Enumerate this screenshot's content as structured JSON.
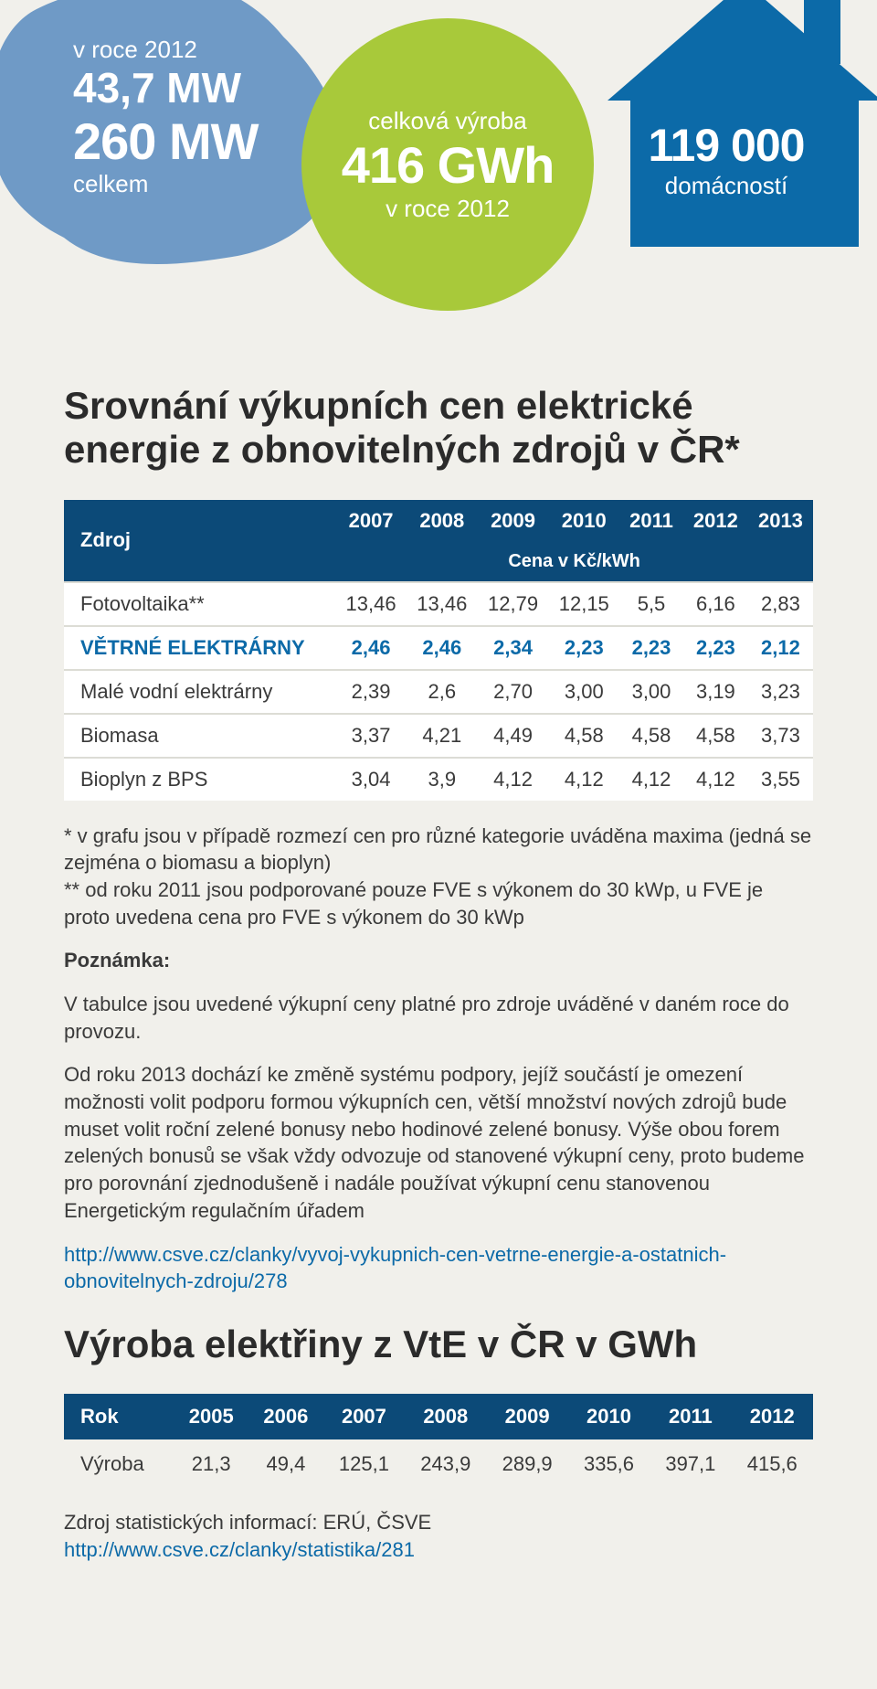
{
  "colors": {
    "page_bg": "#f1f0eb",
    "map_blue": "#6f9ac6",
    "circle_green": "#a8c93a",
    "house_blue": "#0c6aa8",
    "header_dark": "#0c4a78",
    "text": "#3a3a3a",
    "link": "#0c6aa8",
    "row_divider": "#dcdcd5"
  },
  "hero": {
    "map": {
      "line1": "v roce 2012",
      "line2": "43,7 MW",
      "line3": "260 MW",
      "line4": "celkem"
    },
    "circle": {
      "line1": "celková výroba",
      "line2": "416 GWh",
      "line3": "v roce 2012"
    },
    "house": {
      "line1": "119 000",
      "line2": "domácností"
    }
  },
  "title1": "Srovnání výkupních cen elektrické energie z obnovitelných zdrojů v ČR*",
  "table1": {
    "col0_header": "Zdroj",
    "year_headers": [
      "2007",
      "2008",
      "2009",
      "2010",
      "2011",
      "2012",
      "2013"
    ],
    "subheader": "Cena v Kč/kWh",
    "rows": [
      {
        "label": "Fotovoltaika**",
        "vals": [
          "13,46",
          "13,46",
          "12,79",
          "12,15",
          "5,5",
          "6,16",
          "2,83"
        ],
        "hl": false
      },
      {
        "label": "VĚTRNÉ ELEKTRÁRNY",
        "vals": [
          "2,46",
          "2,46",
          "2,34",
          "2,23",
          "2,23",
          "2,23",
          "2,12"
        ],
        "hl": true
      },
      {
        "label": "Malé vodní elektrárny",
        "vals": [
          "2,39",
          "2,6",
          "2,70",
          "3,00",
          "3,00",
          "3,19",
          "3,23"
        ],
        "hl": false
      },
      {
        "label": "Biomasa",
        "vals": [
          "3,37",
          "4,21",
          "4,49",
          "4,58",
          "4,58",
          "4,58",
          "3,73"
        ],
        "hl": false
      },
      {
        "label": "Bioplyn z BPS",
        "vals": [
          "3,04",
          "3,9",
          "4,12",
          "4,12",
          "4,12",
          "4,12",
          "3,55"
        ],
        "hl": false
      }
    ]
  },
  "notes": {
    "star1": "* v grafu jsou v případě rozmezí cen pro různé kategorie uváděna maxima (jedná se zejména o biomasu a bioplyn)",
    "star2": "** od roku 2011 jsou podporované pouze FVE s výkonem do 30 kWp, u FVE je proto uvedena cena pro FVE s výkonem do 30 kWp",
    "poznamka_label": "Poznámka:",
    "p1": "V tabulce jsou uvedené výkupní ceny platné pro zdroje uváděné v daném roce do provozu.",
    "p2": "Od roku 2013 dochází ke změně systému podpory, jejíž součástí je omezení možnosti volit podporu formou výkupních cen, větší množství nových zdrojů bude muset volit roční zelené bonusy nebo hodinové zelené bonusy. Výše obou forem zelených bonusů se však vždy odvozuje od stanovené výkupní ceny, proto budeme pro porovnání zjednodušeně i nadále používat výkupní cenu stanovenou Energetickým regulačním úřadem",
    "link1": "http://www.csve.cz/clanky/vyvoj-vykupnich-cen-vetrne-energie-a-ostatnich-obnovitelnych-zdroju/278"
  },
  "title2": "Výroba elektřiny z VtE v ČR v GWh",
  "table2": {
    "col0_header": "Rok",
    "years": [
      "2005",
      "2006",
      "2007",
      "2008",
      "2009",
      "2010",
      "2011",
      "2012"
    ],
    "row_label": "Výroba",
    "vals": [
      "21,3",
      "49,4",
      "125,1",
      "243,9",
      "289,9",
      "335,6",
      "397,1",
      "415,6"
    ]
  },
  "source": {
    "text": "Zdroj statistických informací: ERÚ, ČSVE",
    "link": "http://www.csve.cz/clanky/statistika/281"
  }
}
